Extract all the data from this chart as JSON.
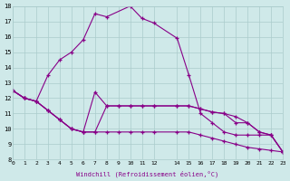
{
  "xlabel": "Windchill (Refroidissement éolien,°C)",
  "background_color": "#cfe9e9",
  "line_color": "#880088",
  "grid_color": "#aacccc",
  "xlim": [
    0,
    23
  ],
  "ylim": [
    8,
    18
  ],
  "yticks": [
    8,
    9,
    10,
    11,
    12,
    13,
    14,
    15,
    16,
    17,
    18
  ],
  "xticks": [
    0,
    1,
    2,
    3,
    4,
    5,
    6,
    7,
    8,
    9,
    10,
    11,
    12,
    14,
    15,
    16,
    17,
    18,
    19,
    20,
    21,
    22,
    23
  ],
  "xtick_labels": [
    "0",
    "1",
    "2",
    "3",
    "4",
    "5",
    "6",
    "7",
    "8",
    "9",
    "10",
    "11",
    "12",
    "14",
    "15",
    "16",
    "17",
    "18",
    "19",
    "20",
    "21",
    "22",
    "23"
  ],
  "curves": [
    {
      "x": [
        0,
        1,
        2,
        3,
        4,
        5,
        6,
        7,
        8,
        10,
        11,
        12,
        14,
        15,
        16,
        17,
        18,
        19,
        20,
        21,
        22,
        23
      ],
      "y": [
        12.5,
        12.0,
        11.8,
        13.5,
        14.5,
        15.0,
        15.8,
        17.5,
        17.3,
        18.0,
        17.2,
        16.9,
        15.9,
        13.5,
        11.0,
        10.4,
        9.8,
        9.6,
        9.6,
        9.6,
        9.6,
        8.5
      ]
    },
    {
      "x": [
        0,
        1,
        2,
        3,
        4,
        5,
        6,
        7,
        8,
        9,
        10,
        11,
        12,
        14,
        15,
        16,
        17,
        18,
        19,
        20,
        21,
        22,
        23
      ],
      "y": [
        12.5,
        12.0,
        11.8,
        11.2,
        10.6,
        10.0,
        9.8,
        12.4,
        11.5,
        11.5,
        11.5,
        11.5,
        11.5,
        11.5,
        11.5,
        11.3,
        11.1,
        11.0,
        10.4,
        10.4,
        9.8,
        9.6,
        8.5
      ]
    },
    {
      "x": [
        0,
        1,
        2,
        3,
        4,
        5,
        6,
        7,
        8,
        9,
        10,
        11,
        12,
        14,
        15,
        16,
        17,
        18,
        19,
        20,
        21,
        22,
        23
      ],
      "y": [
        12.5,
        12.0,
        11.8,
        11.2,
        10.6,
        10.0,
        9.8,
        9.8,
        11.5,
        11.5,
        11.5,
        11.5,
        11.5,
        11.5,
        11.5,
        11.3,
        11.1,
        11.0,
        10.8,
        10.4,
        9.8,
        9.6,
        8.5
      ]
    },
    {
      "x": [
        0,
        1,
        2,
        3,
        4,
        5,
        6,
        7,
        8,
        9,
        10,
        11,
        12,
        14,
        15,
        16,
        17,
        18,
        19,
        20,
        21,
        22,
        23
      ],
      "y": [
        12.5,
        12.0,
        11.8,
        11.2,
        10.6,
        10.0,
        9.8,
        9.8,
        9.8,
        9.8,
        9.8,
        9.8,
        9.8,
        9.8,
        9.8,
        9.6,
        9.4,
        9.2,
        9.0,
        8.8,
        8.7,
        8.6,
        8.5
      ]
    }
  ]
}
